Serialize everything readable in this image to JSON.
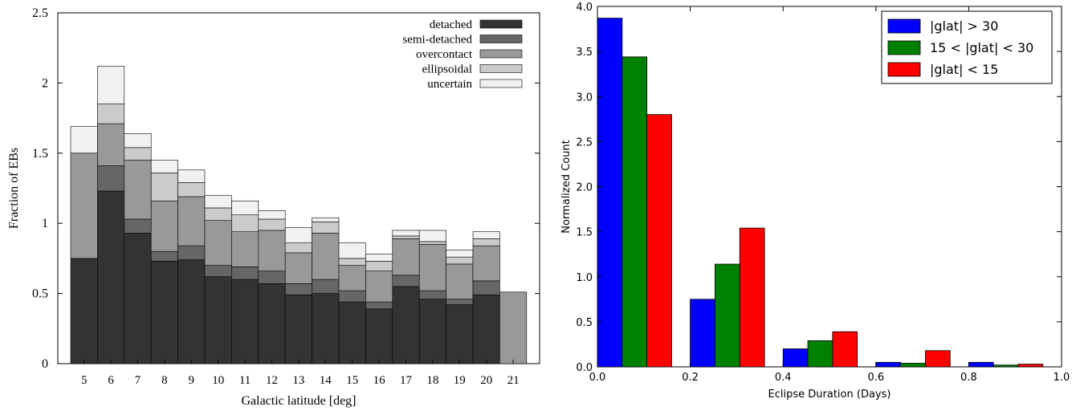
{
  "chart_data": [
    {
      "type": "bar",
      "stacked": true,
      "xlabel": "Galactic latitude [deg]",
      "ylabel": "Fraction of EBs",
      "ylim": [
        0,
        2.5
      ],
      "yticks": [
        "0",
        "0.5",
        "1",
        "1.5",
        "2",
        "2.5"
      ],
      "categories": [
        "5",
        "6",
        "7",
        "8",
        "9",
        "10",
        "11",
        "12",
        "13",
        "14",
        "15",
        "16",
        "17",
        "18",
        "19",
        "20",
        "21"
      ],
      "legend_position": "top-right",
      "series": [
        {
          "name": "detached",
          "color": "#333333",
          "values": [
            0.75,
            1.23,
            0.93,
            0.73,
            0.74,
            0.62,
            0.6,
            0.57,
            0.49,
            0.5,
            0.44,
            0.39,
            0.55,
            0.46,
            0.42,
            0.49,
            0
          ]
        },
        {
          "name": "semi-detached",
          "color": "#666666",
          "values": [
            0,
            0.18,
            0.1,
            0.07,
            0.1,
            0.08,
            0.09,
            0.09,
            0.08,
            0.1,
            0.08,
            0.05,
            0.08,
            0.06,
            0.04,
            0.1,
            0
          ]
        },
        {
          "name": "overcontact",
          "color": "#999999",
          "values": [
            0.75,
            0.3,
            0.42,
            0.36,
            0.35,
            0.32,
            0.25,
            0.29,
            0.22,
            0.33,
            0.18,
            0.22,
            0.26,
            0.33,
            0.25,
            0.25,
            0.51
          ]
        },
        {
          "name": "ellipsoidal",
          "color": "#cbcbcb",
          "values": [
            0,
            0.14,
            0.09,
            0.2,
            0.1,
            0.09,
            0.12,
            0.08,
            0.07,
            0.08,
            0.05,
            0.07,
            0.02,
            0.02,
            0.05,
            0.05,
            0
          ]
        },
        {
          "name": "uncertain",
          "color": "#f1f1f1",
          "values": [
            0.19,
            0.27,
            0.1,
            0.09,
            0.09,
            0.09,
            0.1,
            0.06,
            0.11,
            0.03,
            0.11,
            0.05,
            0.04,
            0.08,
            0.05,
            0.05,
            0
          ]
        }
      ]
    },
    {
      "type": "bar",
      "xlabel": "Eclipse Duration (Days)",
      "ylabel": "Normalized Count",
      "xlim": [
        0,
        1.0
      ],
      "ylim": [
        0,
        4.0
      ],
      "xticks": [
        "0.0",
        "0.2",
        "0.4",
        "0.6",
        "0.8",
        "1.0"
      ],
      "yticks": [
        "0.0",
        "0.5",
        "1.0",
        "1.5",
        "2.0",
        "2.5",
        "3.0",
        "3.5",
        "4.0"
      ],
      "bin_edges": [
        0,
        0.2,
        0.4,
        0.6,
        0.8,
        1.0
      ],
      "legend_position": "top-right",
      "series": [
        {
          "name": "|glat| > 30",
          "color": "#0000ff",
          "values": [
            3.87,
            0.75,
            0.2,
            0.05,
            0.05
          ]
        },
        {
          "name": "15 < |glat| < 30",
          "color": "#008000",
          "values": [
            3.44,
            1.14,
            0.29,
            0.04,
            0.02
          ]
        },
        {
          "name": "|glat| < 15",
          "color": "#ff0000",
          "values": [
            2.8,
            1.54,
            0.39,
            0.18,
            0.03
          ]
        }
      ]
    }
  ]
}
